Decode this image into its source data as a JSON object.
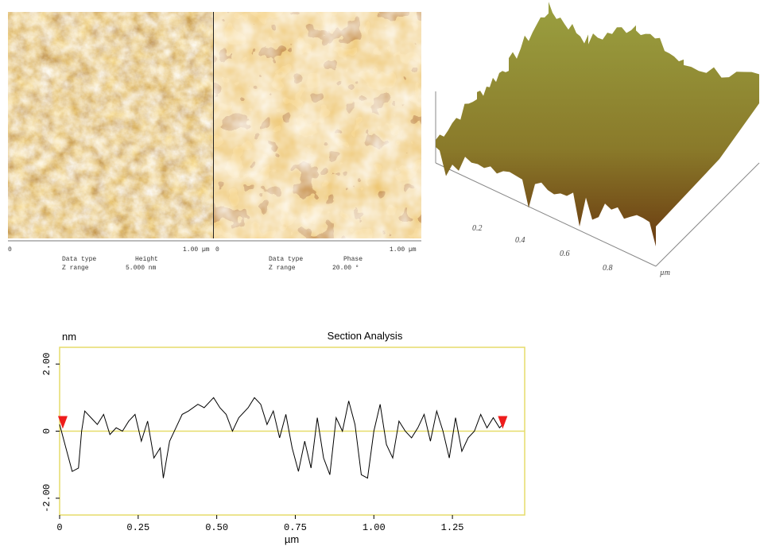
{
  "images": [
    {
      "axis_start": "0",
      "axis_end": "1.00 µm",
      "data_type_label": "Data type",
      "data_type": "Height",
      "z_range_label": "Z range",
      "z_range": "5.000 nm"
    },
    {
      "axis_start": "0",
      "axis_end": "1.00 µm",
      "data_type_label": "Data type",
      "data_type": "Phase",
      "z_range_label": "Z range",
      "z_range": "20.00 °"
    }
  ],
  "surface": {
    "ticks": [
      "0.2",
      "0.4",
      "0.6",
      "0.8"
    ],
    "unit": "µm"
  },
  "chart_data": {
    "type": "line",
    "title": "Section Analysis",
    "y_label": "nm",
    "x_label": "µm",
    "x": [
      0,
      0.02,
      0.04,
      0.06,
      0.07,
      0.08,
      0.1,
      0.12,
      0.14,
      0.16,
      0.18,
      0.2,
      0.22,
      0.24,
      0.26,
      0.28,
      0.3,
      0.32,
      0.33,
      0.35,
      0.37,
      0.39,
      0.41,
      0.44,
      0.46,
      0.49,
      0.51,
      0.53,
      0.55,
      0.57,
      0.6,
      0.62,
      0.64,
      0.66,
      0.68,
      0.7,
      0.72,
      0.74,
      0.76,
      0.78,
      0.8,
      0.82,
      0.84,
      0.86,
      0.88,
      0.9,
      0.92,
      0.94,
      0.96,
      0.98,
      1.0,
      1.02,
      1.04,
      1.06,
      1.08,
      1.1,
      1.12,
      1.14,
      1.16,
      1.18,
      1.2,
      1.22,
      1.24,
      1.26,
      1.28,
      1.3,
      1.32,
      1.34,
      1.36,
      1.38,
      1.4,
      1.41
    ],
    "values": [
      0.2,
      -0.5,
      -1.2,
      -1.1,
      0.0,
      0.6,
      0.4,
      0.2,
      0.5,
      -0.1,
      0.1,
      0.0,
      0.3,
      0.5,
      -0.3,
      0.3,
      -0.8,
      -0.5,
      -1.4,
      -0.3,
      0.1,
      0.5,
      0.6,
      0.8,
      0.7,
      1.0,
      0.7,
      0.5,
      0.0,
      0.4,
      0.7,
      1.0,
      0.8,
      0.2,
      0.6,
      -0.2,
      0.5,
      -0.5,
      -1.2,
      -0.3,
      -1.1,
      0.4,
      -0.8,
      -1.3,
      0.4,
      0.0,
      0.9,
      0.2,
      -1.3,
      -1.4,
      0.0,
      0.8,
      -0.4,
      -0.8,
      0.3,
      0.0,
      -0.2,
      0.1,
      0.5,
      -0.3,
      0.6,
      0.0,
      -0.8,
      0.4,
      -0.6,
      -0.2,
      0.0,
      0.5,
      0.1,
      0.4,
      0.1,
      0.2
    ],
    "color": "#000000",
    "axis_color": "#e6dc6a",
    "cursor_color": "#ee1c1c",
    "cursors": [
      0.01,
      1.41
    ],
    "xlim": [
      0,
      1.48
    ],
    "ylim": [
      -2.5,
      2.5
    ],
    "xticks": [
      0,
      0.25,
      {
        "value": 0.5,
        "label": "0.50"
      },
      0.75,
      {
        "value": 1,
        "label": "1.00"
      },
      1.25
    ],
    "yticks": [
      {
        "value": 2,
        "label": "2.00"
      },
      0,
      {
        "value": -2,
        "label": "-2.00"
      }
    ]
  }
}
